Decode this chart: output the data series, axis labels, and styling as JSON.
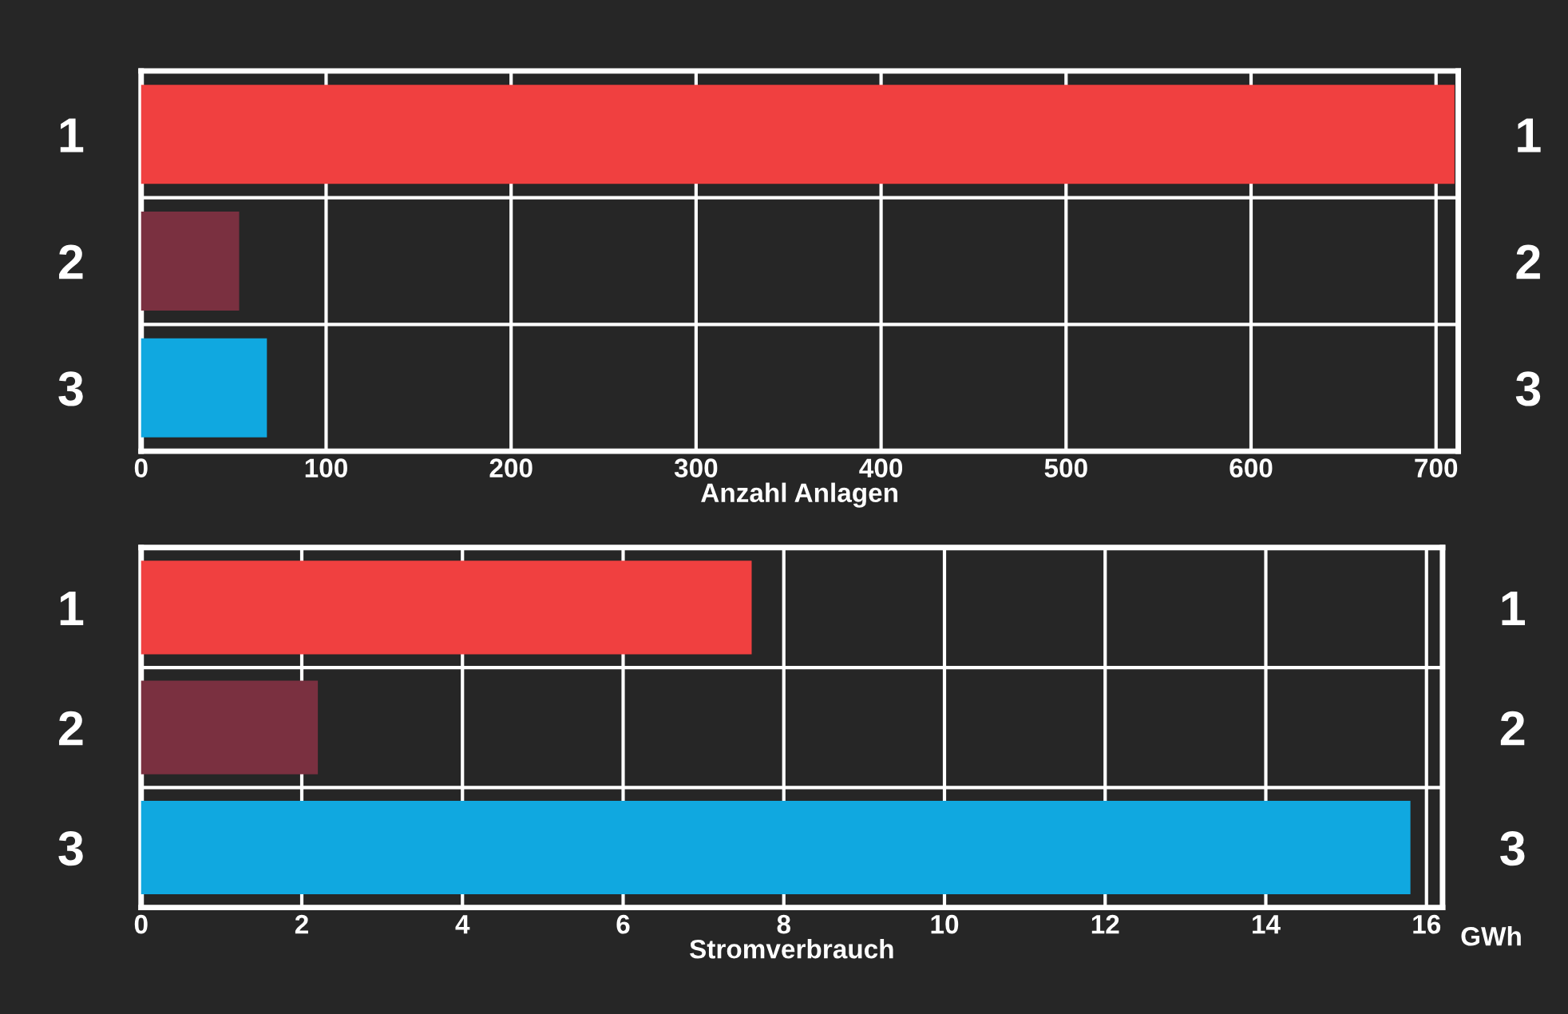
{
  "chart_data": [
    {
      "type": "bar",
      "orientation": "horizontal",
      "categories": [
        "1",
        "2",
        "3"
      ],
      "values": [
        710,
        53,
        68
      ],
      "colors": [
        "#f04040",
        "#7a3040",
        "#10a8e0"
      ],
      "xlabel": "Anzahl Anlagen",
      "xlim": [
        0,
        712
      ],
      "xticks": [
        0,
        100,
        200,
        300,
        400,
        500,
        600,
        700
      ],
      "grid": true
    },
    {
      "type": "bar",
      "orientation": "horizontal",
      "categories": [
        "1",
        "2",
        "3"
      ],
      "values": [
        7.6,
        2.2,
        15.8
      ],
      "colors": [
        "#f04040",
        "#7a3040",
        "#10a8e0"
      ],
      "xlabel": "Stromverbrauch",
      "xlim": [
        0,
        16.2
      ],
      "xticks": [
        0,
        2,
        4,
        6,
        8,
        10,
        12,
        14,
        16
      ],
      "grid": true,
      "annotations": [
        "GWh"
      ]
    }
  ]
}
